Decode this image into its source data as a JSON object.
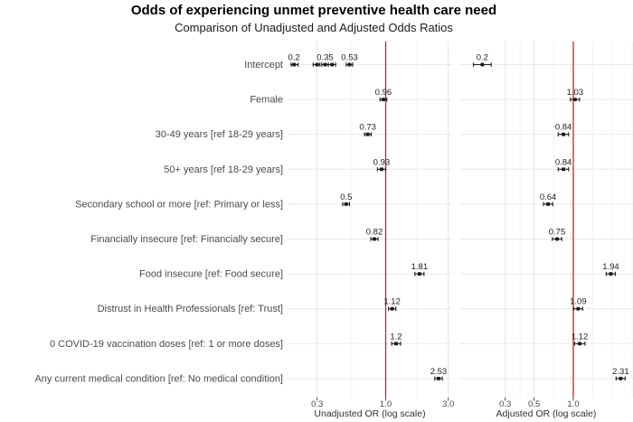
{
  "title": "Odds of experiencing unmet preventive health care need",
  "subtitle": "Comparison of Unadjusted and Adjusted Odds Ratios",
  "colors": {
    "reference_line": "#cc2222",
    "marker": "#1a1a1a",
    "grid_row": "#e9e9e9",
    "grid_major": "#e4e4e4",
    "grid_minor": "#f2f2f2",
    "axis_text": "#4a4a4a",
    "value_label": "#1c1c1c"
  },
  "chart_data": {
    "type": "scatter",
    "subtype": "forest-plot-dot-whisker",
    "log_scale_x": true,
    "grid": true,
    "reference_line_x": 1.0,
    "categories": [
      "Intercept",
      "Female",
      "30-49 years [ref 18-29 years]",
      "50+ years [ref 18-29 years]",
      "Secondary school or more [ref: Primary or less]",
      "Financially insecure [ref: Financially secure]",
      "Food insecure [ref: Food secure]",
      "Distrust in Health Professionals [ref: Trust]",
      "0 COVID-19 vaccination doses [ref: 1 or more doses]",
      "Any current medical condition [ref: No medical condition]"
    ],
    "panels": [
      {
        "name": "unadjusted",
        "xlabel": "Unadjusted OR (log scale)",
        "xlim": [
          0.15,
          4.2
        ],
        "ticks": [
          {
            "v": 0.3,
            "label": "0.3"
          },
          {
            "v": 1.0,
            "label": "1.0"
          },
          {
            "v": 3.0,
            "label": "3.0"
          }
        ],
        "rows": [
          [
            {
              "or": 0.2,
              "lo": 0.19,
              "hi": 0.215,
              "label": "0.2"
            },
            {
              "or": 0.3,
              "lo": 0.28,
              "hi": 0.315,
              "label": ""
            },
            {
              "or": 0.345,
              "lo": 0.325,
              "hi": 0.365,
              "label": "0.35"
            },
            {
              "or": 0.39,
              "lo": 0.365,
              "hi": 0.415,
              "label": ""
            },
            {
              "or": 0.53,
              "lo": 0.5,
              "hi": 0.56,
              "label": "0.53"
            }
          ],
          [
            {
              "or": 0.96,
              "lo": 0.905,
              "hi": 1.02,
              "label": "0.96"
            }
          ],
          [
            {
              "or": 0.73,
              "lo": 0.69,
              "hi": 0.775,
              "label": "0.73"
            }
          ],
          [
            {
              "or": 0.93,
              "lo": 0.865,
              "hi": 1.0,
              "label": "0.93"
            }
          ],
          [
            {
              "or": 0.5,
              "lo": 0.47,
              "hi": 0.53,
              "label": "0.5"
            }
          ],
          [
            {
              "or": 0.82,
              "lo": 0.77,
              "hi": 0.875,
              "label": "0.82"
            }
          ],
          [
            {
              "or": 1.81,
              "lo": 1.67,
              "hi": 1.96,
              "label": "1.81"
            }
          ],
          [
            {
              "or": 1.12,
              "lo": 1.05,
              "hi": 1.195,
              "label": "1.12"
            }
          ],
          [
            {
              "or": 1.2,
              "lo": 1.11,
              "hi": 1.3,
              "label": "1.2"
            }
          ],
          [
            {
              "or": 2.53,
              "lo": 2.37,
              "hi": 2.7,
              "label": "2.53"
            }
          ]
        ]
      },
      {
        "name": "adjusted",
        "xlabel": "Adjusted OR (log scale)",
        "xlim": [
          0.17,
          2.9
        ],
        "ticks": [
          {
            "v": 0.3,
            "label": "0.3"
          },
          {
            "v": 0.5,
            "label": "0.5"
          },
          {
            "v": 1.0,
            "label": "1.0"
          }
        ],
        "rows": [
          [
            {
              "or": 0.2,
              "lo": 0.171,
              "hi": 0.234,
              "label": "0.2"
            }
          ],
          [
            {
              "or": 1.03,
              "lo": 0.95,
              "hi": 1.115,
              "label": "1.03"
            }
          ],
          [
            {
              "or": 0.84,
              "lo": 0.765,
              "hi": 0.92,
              "label": "0.84"
            }
          ],
          [
            {
              "or": 0.84,
              "lo": 0.765,
              "hi": 0.92,
              "label": "0.84"
            }
          ],
          [
            {
              "or": 0.64,
              "lo": 0.59,
              "hi": 0.695,
              "label": "0.64"
            }
          ],
          [
            {
              "or": 0.75,
              "lo": 0.69,
              "hi": 0.815,
              "label": "0.75"
            }
          ],
          [
            {
              "or": 1.94,
              "lo": 1.79,
              "hi": 2.1,
              "label": "1.94"
            }
          ],
          [
            {
              "or": 1.09,
              "lo": 1.005,
              "hi": 1.18,
              "label": "1.09"
            }
          ],
          [
            {
              "or": 1.12,
              "lo": 1.02,
              "hi": 1.23,
              "label": "1.12"
            }
          ],
          [
            {
              "or": 2.31,
              "lo": 2.13,
              "hi": 2.5,
              "label": "2.31"
            }
          ]
        ]
      }
    ]
  }
}
